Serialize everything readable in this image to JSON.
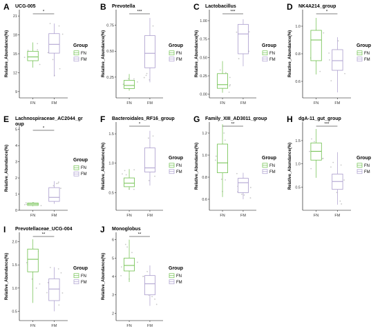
{
  "colors": {
    "FN": "#6cbf4a",
    "FM": "#a99bcc",
    "point": "#c8c8c8",
    "axis": "#000000"
  },
  "legend": {
    "title": "Group",
    "labels": [
      "FN",
      "FM"
    ]
  },
  "ylabel": "Relative_Abundance(%)",
  "chart_data": [
    {
      "type": "box",
      "letter": "A",
      "title": "UCG-005",
      "categories": [
        "FN",
        "FM"
      ],
      "yticks": [
        9,
        12,
        15,
        18,
        21
      ],
      "ylim": [
        8,
        22
      ],
      "boxes": [
        {
          "group": "FN",
          "min": 12.8,
          "q1": 13.9,
          "median": 14.5,
          "q3": 15.4,
          "max": 16.8
        },
        {
          "group": "FM",
          "min": 11.4,
          "q1": 15.1,
          "median": 16.5,
          "q3": 18.2,
          "max": 19.8
        }
      ],
      "significance": "*"
    },
    {
      "type": "box",
      "letter": "B",
      "title": "Prevotella",
      "categories": [
        "FN",
        "FM"
      ],
      "yticks": [
        0.25,
        0.5,
        0.75
      ],
      "ylim": [
        0.05,
        0.9
      ],
      "boxes": [
        {
          "group": "FN",
          "min": 0.12,
          "q1": 0.14,
          "median": 0.17,
          "q3": 0.22,
          "max": 0.28
        },
        {
          "group": "FM",
          "min": 0.2,
          "q1": 0.34,
          "median": 0.48,
          "q3": 0.65,
          "max": 0.82
        }
      ],
      "significance": "***"
    },
    {
      "type": "box",
      "letter": "C",
      "title": "Lactobacillus",
      "categories": [
        "FN",
        "FM"
      ],
      "yticks": [
        0.0,
        0.25,
        0.5,
        0.75,
        1.0
      ],
      "ylim": [
        -0.05,
        1.15
      ],
      "boxes": [
        {
          "group": "FN",
          "min": 0.02,
          "q1": 0.08,
          "median": 0.13,
          "q3": 0.28,
          "max": 0.45
        },
        {
          "group": "FM",
          "min": 0.38,
          "q1": 0.55,
          "median": 0.82,
          "q3": 0.95,
          "max": 1.02
        }
      ],
      "significance": "***"
    },
    {
      "type": "box",
      "letter": "D",
      "title": "NK4A214_group",
      "categories": [
        "FN",
        "FM"
      ],
      "yticks": [
        0.6,
        0.8,
        1.0
      ],
      "ylim": [
        0.48,
        1.12
      ],
      "boxes": [
        {
          "group": "FN",
          "min": 0.65,
          "q1": 0.75,
          "median": 0.9,
          "q3": 0.97,
          "max": 1.06
        },
        {
          "group": "FM",
          "min": 0.52,
          "q1": 0.68,
          "median": 0.75,
          "q3": 0.83,
          "max": 0.92
        }
      ],
      "significance": "*"
    },
    {
      "type": "box",
      "letter": "E",
      "title": "Lachnospiraceae_AC2044_gr\noup",
      "categories": [
        "FN",
        "FM"
      ],
      "yticks": [
        0,
        1,
        2,
        3,
        4,
        5
      ],
      "ylim": [
        0,
        5.2
      ],
      "boxes": [
        {
          "group": "FN",
          "min": 0.25,
          "q1": 0.3,
          "median": 0.38,
          "q3": 0.45,
          "max": 0.5
        },
        {
          "group": "FM",
          "min": 0.4,
          "q1": 0.55,
          "median": 0.8,
          "q3": 1.4,
          "max": 1.8
        }
      ],
      "significance": "*"
    },
    {
      "type": "box",
      "letter": "F",
      "title": "Bacteroidales_RF16_group",
      "categories": [
        "FN",
        "FM"
      ],
      "yticks": [
        0.5,
        1.0,
        1.5
      ],
      "ylim": [
        0.2,
        1.7
      ],
      "boxes": [
        {
          "group": "FN",
          "min": 0.55,
          "q1": 0.6,
          "median": 0.66,
          "q3": 0.75,
          "max": 0.9
        },
        {
          "group": "FM",
          "min": 0.62,
          "q1": 0.85,
          "median": 0.92,
          "q3": 1.26,
          "max": 1.55
        }
      ],
      "significance": "*"
    },
    {
      "type": "box",
      "letter": "G",
      "title": "Family_XIII_AD3011_group",
      "categories": [
        "FN",
        "FM"
      ],
      "yticks": [
        0.6,
        0.8,
        1.0,
        1.2
      ],
      "ylim": [
        0.5,
        1.3
      ],
      "boxes": [
        {
          "group": "FN",
          "min": 0.62,
          "q1": 0.84,
          "median": 0.93,
          "q3": 1.1,
          "max": 1.28
        },
        {
          "group": "FM",
          "min": 0.6,
          "q1": 0.66,
          "median": 0.75,
          "q3": 0.79,
          "max": 0.84
        }
      ],
      "significance": "**"
    },
    {
      "type": "box",
      "letter": "H",
      "title": "dgA-11_gut_group",
      "categories": [
        "FN",
        "FM"
      ],
      "yticks": [
        0.5,
        1.0,
        1.5
      ],
      "ylim": [
        0,
        1.9
      ],
      "boxes": [
        {
          "group": "FN",
          "min": 0.7,
          "q1": 1.08,
          "median": 1.27,
          "q3": 1.45,
          "max": 1.75
        },
        {
          "group": "FM",
          "min": 0.12,
          "q1": 0.45,
          "median": 0.62,
          "q3": 0.78,
          "max": 1.25
        }
      ],
      "significance": "***"
    },
    {
      "type": "box",
      "letter": "I",
      "title": "Prevotellaceae_UCG-004",
      "categories": [
        "FN",
        "FM"
      ],
      "yticks": [
        0.5,
        1.0,
        1.5,
        2.0
      ],
      "ylim": [
        0.3,
        2.2
      ],
      "boxes": [
        {
          "group": "FN",
          "min": 0.68,
          "q1": 1.35,
          "median": 1.62,
          "q3": 1.84,
          "max": 2.05
        },
        {
          "group": "FM",
          "min": 0.5,
          "q1": 0.73,
          "median": 0.98,
          "q3": 1.2,
          "max": 1.45
        }
      ],
      "significance": "**"
    },
    {
      "type": "box",
      "letter": "J",
      "title": "Monoglobus",
      "categories": [
        "FN",
        "FM"
      ],
      "yticks": [
        2,
        3,
        4,
        5,
        6
      ],
      "ylim": [
        1.6,
        6.4
      ],
      "boxes": [
        {
          "group": "FN",
          "min": 3.7,
          "q1": 4.3,
          "median": 4.6,
          "q3": 5.0,
          "max": 6.0
        },
        {
          "group": "FM",
          "min": 2.4,
          "q1": 3.0,
          "median": 3.6,
          "q3": 4.05,
          "max": 4.6
        }
      ],
      "significance": "**"
    }
  ]
}
